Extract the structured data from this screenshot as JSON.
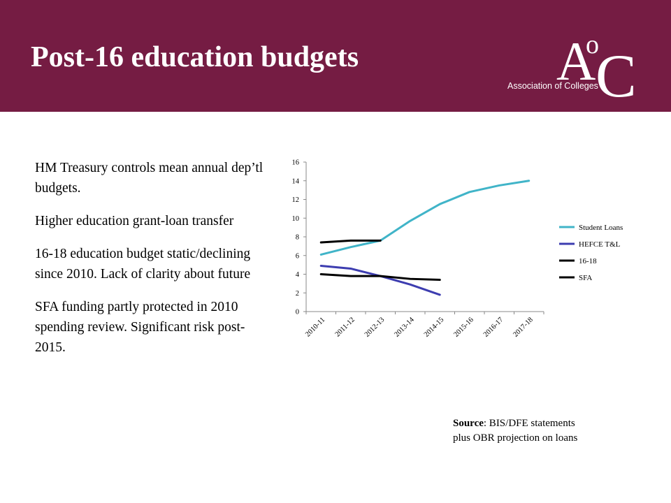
{
  "header": {
    "title": "Post-16 education budgets",
    "logo_text": "Association of Colleges",
    "logo_initials_large_a": "A",
    "logo_initials_small_o": "o",
    "logo_initials_large_c": "C"
  },
  "bullets": [
    "HM Treasury controls mean annual dep’tl budgets.",
    "Higher education grant-loan transfer",
    "16-18 education budget static/declining since 2010. Lack of clarity about future",
    "SFA funding partly protected in 2010 spending review. Significant risk post-2015."
  ],
  "source": {
    "label": "Source",
    "text": ": BIS/DFE statements",
    "text2": "plus OBR projection on loans"
  },
  "colors": {
    "header_bg": "#751c43",
    "student_loans": "#40b4c8",
    "hefce": "#3d3db0",
    "line_16_18": "#000000",
    "sfa": "#000000"
  },
  "chart_data": {
    "type": "line",
    "categories": [
      "2010-11",
      "2011-12",
      "2012-13",
      "2013-14",
      "2014-15",
      "2015-16",
      "2016-17",
      "2017-18"
    ],
    "ylim": [
      0,
      16
    ],
    "yticks": [
      "0",
      "2",
      "4",
      "6",
      "8",
      "10",
      "12",
      "14",
      "16"
    ],
    "legend_position": "right",
    "grid": false,
    "series": [
      {
        "name": "Student Loans",
        "color": "#40b4c8",
        "values": [
          6.1,
          6.9,
          7.6,
          9.7,
          11.5,
          12.8,
          13.5,
          14.0
        ]
      },
      {
        "name": "HEFCE T&L",
        "color": "#3d3db0",
        "values": [
          4.9,
          4.6,
          3.8,
          2.9,
          1.8,
          null,
          null,
          null
        ]
      },
      {
        "name": "16-18",
        "color": "#000000",
        "values": [
          7.4,
          7.6,
          7.6,
          null,
          null,
          null,
          null,
          null
        ]
      },
      {
        "name": "SFA",
        "color": "#000000",
        "values": [
          4.0,
          3.8,
          3.8,
          3.5,
          3.4,
          null,
          null,
          null
        ]
      }
    ]
  }
}
